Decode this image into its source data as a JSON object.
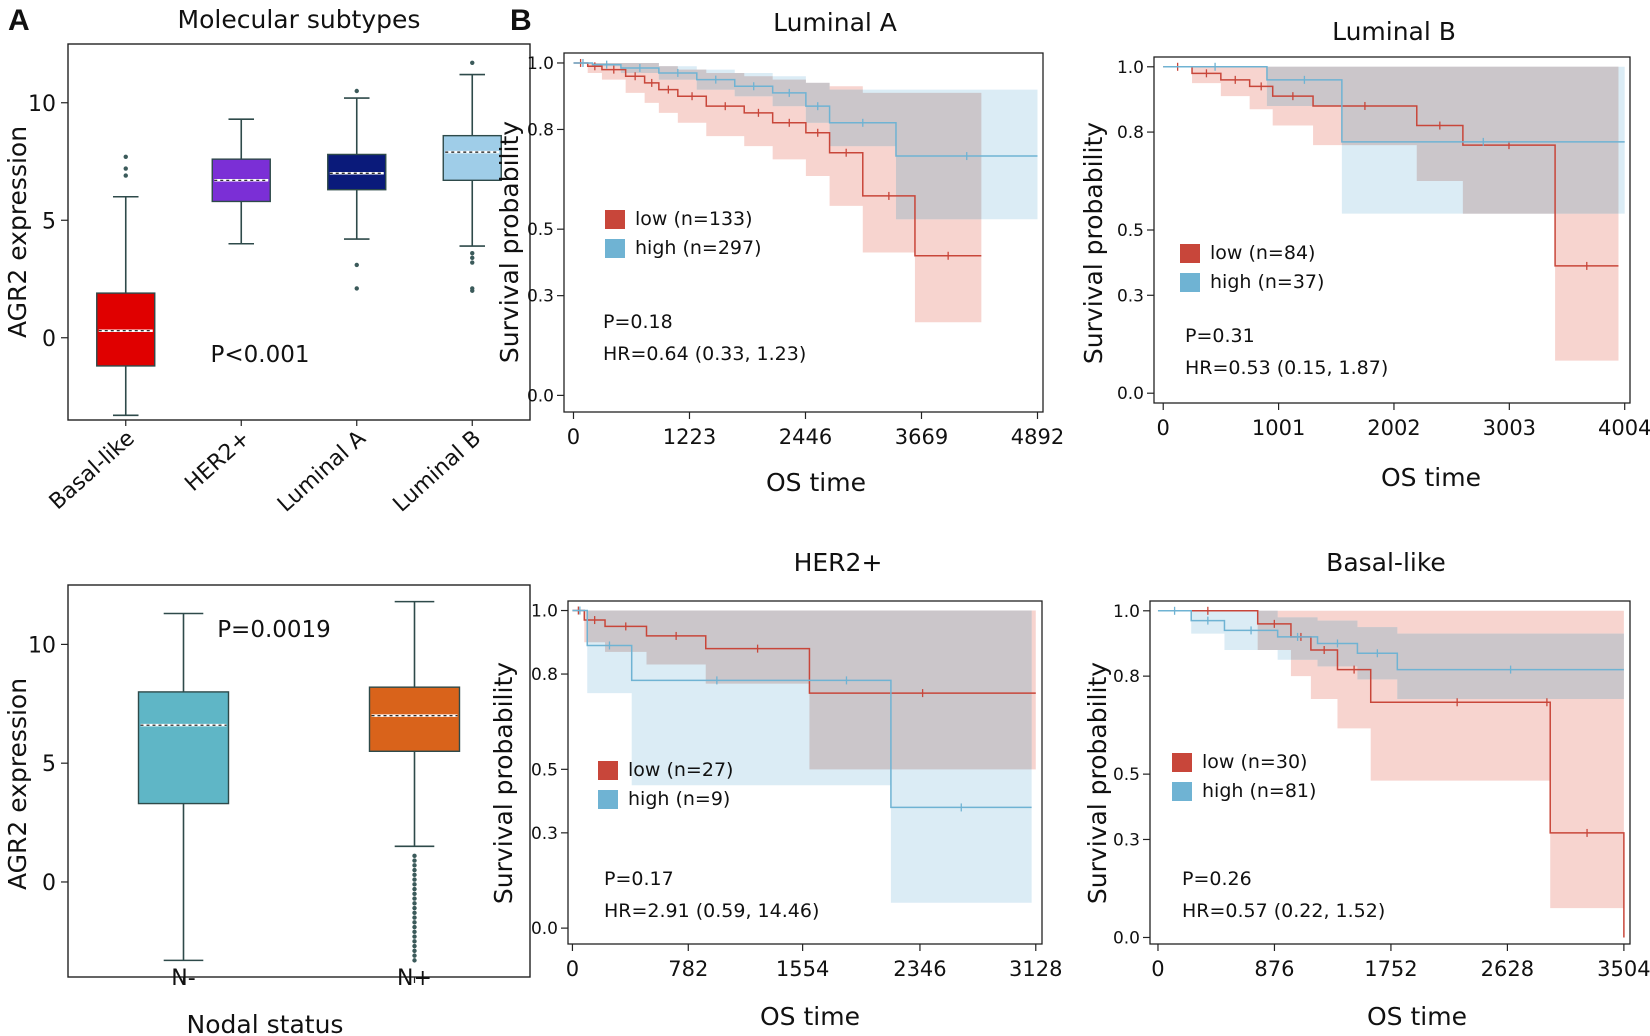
{
  "panel_labels": [
    "A",
    "B"
  ],
  "colors": {
    "basal": "#e00000",
    "her2": "#7b2fd6",
    "luma": "#0a1a7a",
    "lumb": "#9fcde8",
    "nneg": "#5fb6c6",
    "npos": "#d9631b",
    "km_low": "#c8463a",
    "km_high": "#6fb3d3",
    "km_low_band": "#f4c6bf",
    "km_high_band": "#cfe6f1",
    "km_overlap": "#c9c3c6"
  },
  "chart_data": [
    {
      "type": "box",
      "title": "Molecular subtypes",
      "ylabel": "AGR2 expression",
      "xlabel": "",
      "categories": [
        "Basal-like",
        "HER2+",
        "Luminal A",
        "Luminal B"
      ],
      "ylim": [
        -3.5,
        12.5
      ],
      "yticks": [
        0,
        5,
        10
      ],
      "boxes": [
        {
          "name": "Basal-like",
          "q1": -1.2,
          "median": 0.3,
          "q3": 1.9,
          "whisker_low": -3.3,
          "whisker_high": 6.0,
          "outliers": [
            7.7,
            7.2,
            6.9
          ],
          "color": "#e00000"
        },
        {
          "name": "HER2+",
          "q1": 5.8,
          "median": 6.7,
          "q3": 7.6,
          "whisker_low": 4.0,
          "whisker_high": 9.3,
          "outliers": [],
          "color": "#7b2fd6"
        },
        {
          "name": "Luminal A",
          "q1": 6.3,
          "median": 7.0,
          "q3": 7.8,
          "whisker_low": 4.2,
          "whisker_high": 10.2,
          "outliers": [
            10.5,
            3.1,
            2.1
          ],
          "color": "#0a1a7a"
        },
        {
          "name": "Luminal B",
          "q1": 6.7,
          "median": 7.9,
          "q3": 8.6,
          "whisker_low": 3.9,
          "whisker_high": 11.2,
          "outliers": [
            11.7,
            3.6,
            3.4,
            3.2,
            2.1,
            2.0
          ],
          "color": "#9fcde8"
        }
      ],
      "annotation": "P<0.001"
    },
    {
      "type": "box",
      "title": "",
      "ylabel": "AGR2 expression",
      "xlabel": "Nodal status",
      "categories": [
        "N-",
        "N+"
      ],
      "ylim": [
        -4.0,
        12.5
      ],
      "yticks": [
        0,
        5,
        10
      ],
      "boxes": [
        {
          "name": "N-",
          "q1": 3.3,
          "median": 6.6,
          "q3": 8.0,
          "whisker_low": -3.3,
          "whisker_high": 11.3,
          "outliers": [],
          "color": "#5fb6c6"
        },
        {
          "name": "N+",
          "q1": 5.5,
          "median": 7.0,
          "q3": 8.2,
          "whisker_low": 1.5,
          "whisker_high": 11.8,
          "outliers": [
            1.1,
            0.9,
            0.7,
            0.5,
            0.3,
            0.1,
            -0.1,
            -0.3,
            -0.5,
            -0.7,
            -0.9,
            -1.1,
            -1.3,
            -1.5,
            -1.7,
            -1.9,
            -2.1,
            -2.3,
            -2.5,
            -2.7,
            -2.9,
            -3.1,
            -3.3
          ],
          "color": "#d9631b"
        }
      ],
      "annotation": "P=0.0019"
    },
    {
      "type": "line",
      "title": "Luminal A",
      "xlabel": "OS time",
      "ylabel": "Survival probability",
      "xlim": [
        -100,
        4950
      ],
      "ylim": [
        -0.05,
        1.03
      ],
      "xticks": [
        0,
        1223,
        2446,
        3669,
        4892
      ],
      "yticks": [
        0.0,
        0.3,
        0.5,
        0.8,
        1.0
      ],
      "ytick_labels": [
        "0.0",
        "0.3",
        "0.5",
        "0.8",
        "1.0"
      ],
      "legend": "upper-left",
      "series": [
        {
          "name": "low (n=133)",
          "x": [
            0,
            150,
            300,
            550,
            750,
            900,
            1100,
            1400,
            1800,
            2100,
            2450,
            2700,
            3050,
            3600,
            4300
          ],
          "y": [
            1.0,
            0.99,
            0.98,
            0.96,
            0.94,
            0.92,
            0.9,
            0.87,
            0.85,
            0.82,
            0.79,
            0.73,
            0.6,
            0.42,
            0.42
          ],
          "lower": [
            1.0,
            0.97,
            0.95,
            0.91,
            0.88,
            0.85,
            0.82,
            0.78,
            0.75,
            0.71,
            0.66,
            0.57,
            0.43,
            0.22,
            0.22
          ],
          "upper": [
            1.0,
            1.0,
            1.0,
            1.0,
            1.0,
            0.99,
            0.98,
            0.97,
            0.96,
            0.95,
            0.94,
            0.93,
            0.91,
            0.91,
            0.91
          ]
        },
        {
          "name": "high (n=297)",
          "x": [
            0,
            200,
            500,
            900,
            1300,
            1700,
            2100,
            2450,
            2700,
            3400,
            4892
          ],
          "y": [
            1.0,
            0.995,
            0.985,
            0.97,
            0.95,
            0.93,
            0.91,
            0.87,
            0.82,
            0.72,
            0.72
          ],
          "lower": [
            1.0,
            0.99,
            0.97,
            0.95,
            0.92,
            0.9,
            0.87,
            0.82,
            0.75,
            0.53,
            0.53
          ],
          "upper": [
            1.0,
            1.0,
            1.0,
            0.99,
            0.98,
            0.97,
            0.96,
            0.94,
            0.92,
            0.92,
            0.92
          ]
        }
      ],
      "annotations": [
        "P=0.18",
        "HR=0.64 (0.33, 1.23)"
      ]
    },
    {
      "type": "line",
      "title": "Luminal B",
      "xlabel": "OS time",
      "ylabel": "Survival probability",
      "xlim": [
        -80,
        4050
      ],
      "ylim": [
        -0.03,
        1.03
      ],
      "xticks": [
        0,
        1001,
        2002,
        3003,
        4004
      ],
      "yticks": [
        0.0,
        0.3,
        0.5,
        0.8,
        1.0
      ],
      "ytick_labels": [
        "0.0",
        "0.3",
        "0.5",
        "0.8",
        "1.0"
      ],
      "legend": "middle-left",
      "series": [
        {
          "name": "low (n=84)",
          "x": [
            0,
            250,
            500,
            750,
            950,
            1300,
            2200,
            2600,
            3400,
            3950
          ],
          "y": [
            1.0,
            0.98,
            0.96,
            0.94,
            0.91,
            0.88,
            0.82,
            0.76,
            0.39,
            0.39
          ],
          "lower": [
            1.0,
            0.95,
            0.91,
            0.87,
            0.82,
            0.76,
            0.65,
            0.55,
            0.1,
            0.1
          ],
          "upper": [
            1.0,
            1.0,
            1.0,
            1.0,
            1.0,
            1.0,
            1.0,
            1.0,
            1.0,
            1.0
          ]
        },
        {
          "name": "high (n=37)",
          "x": [
            0,
            900,
            1550,
            4004
          ],
          "y": [
            1.0,
            0.96,
            0.77,
            0.77
          ],
          "lower": [
            1.0,
            0.88,
            0.55,
            0.55
          ],
          "upper": [
            1.0,
            1.0,
            1.0,
            1.0
          ]
        }
      ],
      "annotations": [
        "P=0.31",
        "HR=0.53 (0.15, 1.87)"
      ]
    },
    {
      "type": "line",
      "title": "HER2+",
      "xlabel": "OS time",
      "ylabel": "Survival probability",
      "xlim": [
        -30,
        3170
      ],
      "ylim": [
        -0.05,
        1.03
      ],
      "xticks": [
        0,
        782,
        1554,
        2346,
        3128
      ],
      "yticks": [
        0.0,
        0.3,
        0.5,
        0.8,
        1.0
      ],
      "ytick_labels": [
        "0.0",
        "0.3",
        "0.5",
        "0.8",
        "1.0"
      ],
      "legend": "middle-left",
      "series": [
        {
          "name": "low (n=27)",
          "x": [
            0,
            80,
            220,
            500,
            900,
            1600,
            3128
          ],
          "y": [
            1.0,
            0.97,
            0.95,
            0.92,
            0.88,
            0.74,
            0.74
          ],
          "lower": [
            1.0,
            0.9,
            0.87,
            0.83,
            0.77,
            0.5,
            0.5
          ],
          "upper": [
            1.0,
            1.0,
            1.0,
            1.0,
            1.0,
            1.0,
            1.0
          ]
        },
        {
          "name": "high (n=9)",
          "x": [
            0,
            100,
            400,
            1550,
            2150,
            3100
          ],
          "y": [
            1.0,
            0.89,
            0.78,
            0.78,
            0.38,
            0.38
          ],
          "lower": [
            1.0,
            0.74,
            0.45,
            0.45,
            0.08,
            0.08
          ],
          "upper": [
            1.0,
            1.0,
            1.0,
            1.0,
            1.0,
            1.0
          ]
        }
      ],
      "annotations": [
        "P=0.17",
        "HR=2.91 (0.59, 14.46)"
      ]
    },
    {
      "type": "line",
      "title": "Basal-like",
      "xlabel": "OS time",
      "ylabel": "Survival probability",
      "xlim": [
        -60,
        3550
      ],
      "ylim": [
        -0.02,
        1.03
      ],
      "xticks": [
        0,
        876,
        1752,
        2628,
        3504
      ],
      "yticks": [
        0.0,
        0.3,
        0.5,
        0.8,
        1.0
      ],
      "ytick_labels": [
        "0.0",
        "0.3",
        "0.5",
        "0.8",
        "1.0"
      ],
      "legend": "middle-left",
      "series": [
        {
          "name": "low (n=30)",
          "x": [
            0,
            750,
            1000,
            1150,
            1350,
            1600,
            2900,
            2950,
            3504
          ],
          "y": [
            1.0,
            0.96,
            0.92,
            0.88,
            0.82,
            0.72,
            0.72,
            0.32,
            0.0
          ],
          "lower": [
            1.0,
            0.88,
            0.8,
            0.73,
            0.64,
            0.48,
            0.48,
            0.09,
            0.09
          ],
          "upper": [
            1.0,
            1.0,
            1.0,
            1.0,
            1.0,
            1.0,
            1.0,
            1.0,
            1.0
          ]
        },
        {
          "name": "high (n=81)",
          "x": [
            0,
            250,
            500,
            900,
            1200,
            1500,
            1800,
            3504
          ],
          "y": [
            1.0,
            0.97,
            0.94,
            0.92,
            0.9,
            0.87,
            0.82,
            0.82
          ],
          "lower": [
            1.0,
            0.93,
            0.88,
            0.85,
            0.83,
            0.79,
            0.73,
            0.73
          ],
          "upper": [
            1.0,
            1.0,
            1.0,
            0.98,
            0.97,
            0.95,
            0.93,
            0.93
          ]
        }
      ],
      "annotations": [
        "P=0.26",
        "HR=0.57 (0.22, 1.52)"
      ]
    }
  ]
}
